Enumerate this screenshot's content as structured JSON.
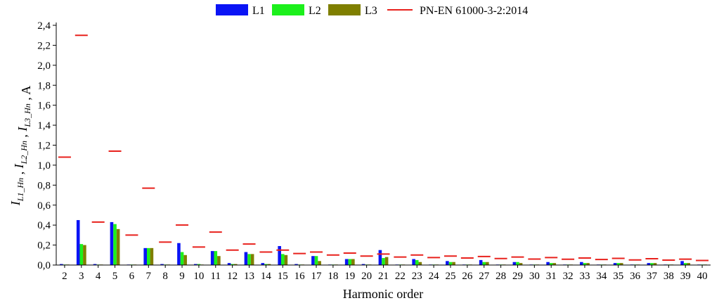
{
  "chart_data": {
    "type": "bar",
    "title": "",
    "xlabel": "Harmonic order",
    "ylabel_parts": [
      {
        "text": "I",
        "style": "italic"
      },
      {
        "text": "L1_Hn",
        "style": "sub"
      },
      {
        "text": " , ",
        "style": "normal"
      },
      {
        "text": "I",
        "style": "italic"
      },
      {
        "text": "L2_Hn",
        "style": "sub"
      },
      {
        "text": " , ",
        "style": "normal"
      },
      {
        "text": "I",
        "style": "italic"
      },
      {
        "text": "L3_Hn",
        "style": "sub"
      },
      {
        "text": " , A",
        "style": "normal"
      }
    ],
    "ylim": [
      0,
      2.4
    ],
    "yticks": [
      "0,0",
      "0,2",
      "0,4",
      "0,6",
      "0,8",
      "1,0",
      "1,2",
      "1,4",
      "1,6",
      "1,8",
      "2,0",
      "2,2",
      "2,4"
    ],
    "categories": [
      "2",
      "3",
      "4",
      "5",
      "6",
      "7",
      "8",
      "9",
      "10",
      "11",
      "12",
      "13",
      "14",
      "15",
      "16",
      "17",
      "18",
      "19",
      "20",
      "21",
      "22",
      "23",
      "24",
      "25",
      "26",
      "27",
      "28",
      "29",
      "30",
      "31",
      "32",
      "33",
      "34",
      "35",
      "36",
      "37",
      "38",
      "39",
      "40"
    ],
    "highlighted_categories": [
      "15",
      "21"
    ],
    "highlight_color": "#e8211c",
    "series": [
      {
        "name": "L1",
        "color": "#0a14f5",
        "values": [
          0.01,
          0.45,
          0.01,
          0.43,
          0.005,
          0.17,
          0.01,
          0.22,
          0.01,
          0.14,
          0.02,
          0.13,
          0.02,
          0.19,
          0.01,
          0.09,
          0.005,
          0.06,
          0.01,
          0.15,
          0.005,
          0.06,
          0.005,
          0.04,
          0.005,
          0.05,
          0.005,
          0.03,
          0.005,
          0.03,
          0.005,
          0.03,
          0.005,
          0.02,
          0.005,
          0.02,
          0.005,
          0.04,
          0.005
        ]
      },
      {
        "name": "L2",
        "color": "#1cf01c",
        "values": [
          0.005,
          0.21,
          0.005,
          0.41,
          0.005,
          0.17,
          0.005,
          0.13,
          0.01,
          0.14,
          0.01,
          0.11,
          0.01,
          0.11,
          0.005,
          0.09,
          0.005,
          0.06,
          0.005,
          0.07,
          0.005,
          0.05,
          0.005,
          0.03,
          0.005,
          0.03,
          0.005,
          0.03,
          0.005,
          0.02,
          0.005,
          0.02,
          0.005,
          0.02,
          0.005,
          0.02,
          0.005,
          0.02,
          0.005
        ]
      },
      {
        "name": "L3",
        "color": "#7f7f00",
        "values": [
          0.005,
          0.2,
          0.005,
          0.36,
          0.005,
          0.17,
          0.005,
          0.1,
          0.005,
          0.09,
          0.01,
          0.11,
          0.01,
          0.1,
          0.005,
          0.04,
          0.005,
          0.06,
          0.005,
          0.08,
          0.005,
          0.03,
          0.005,
          0.03,
          0.005,
          0.03,
          0.005,
          0.02,
          0.005,
          0.02,
          0.005,
          0.02,
          0.005,
          0.02,
          0.005,
          0.02,
          0.005,
          0.02,
          0.005
        ]
      }
    ],
    "limit_series": {
      "name": "PN-EN 61000-3-2:2014",
      "color": "#e8211c",
      "values": [
        1.08,
        2.3,
        0.43,
        1.14,
        0.3,
        0.77,
        0.23,
        0.4,
        0.18,
        0.33,
        0.15,
        0.21,
        0.13,
        0.15,
        0.115,
        0.13,
        0.1,
        0.12,
        0.09,
        0.11,
        0.08,
        0.1,
        0.075,
        0.09,
        0.07,
        0.085,
        0.065,
        0.08,
        0.06,
        0.075,
        0.058,
        0.07,
        0.055,
        0.067,
        0.051,
        0.063,
        0.049,
        0.059,
        0.046
      ]
    },
    "grid": false,
    "legend_position": "top"
  }
}
